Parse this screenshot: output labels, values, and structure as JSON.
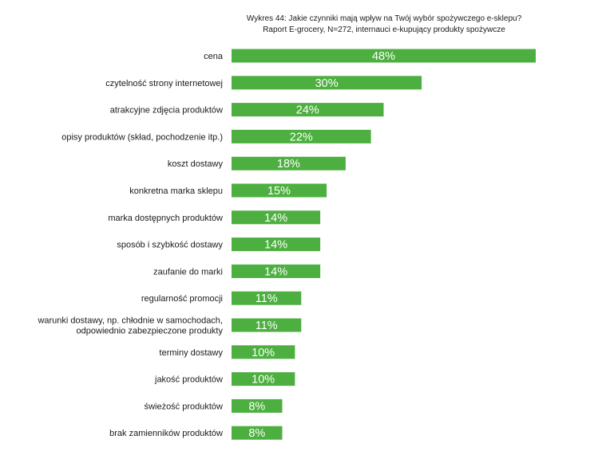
{
  "chart_data": {
    "type": "bar",
    "orientation": "horizontal",
    "title": "Wykres 44: Jakie czynniki mają wpływ na Twój wybór spożywczego e-sklepu?",
    "subtitle": "Raport E-grocery, N=272, internauci e-kupujący produkty spożywcze",
    "bar_color": "#4caf3f",
    "categories": [
      [
        "cena"
      ],
      [
        "czytelność strony internetowej"
      ],
      [
        "atrakcyjne zdjęcia produktów"
      ],
      [
        "opisy produktów (skład, pochodzenie itp.)"
      ],
      [
        "koszt dostawy"
      ],
      [
        "konkretna marka sklepu"
      ],
      [
        "marka dostępnych produktów"
      ],
      [
        "sposób i szybkość dostawy"
      ],
      [
        "zaufanie do marki"
      ],
      [
        "regularność promocji"
      ],
      [
        "warunki dostawy, np. chłodnie w samochodach,",
        "odpowiednio zabezpieczone produkty"
      ],
      [
        "terminy dostawy"
      ],
      [
        "jakość produktów"
      ],
      [
        "świeżość produktów"
      ],
      [
        "brak zamienników produktów"
      ]
    ],
    "values": [
      48,
      30,
      24,
      22,
      18,
      15,
      14,
      14,
      14,
      11,
      11,
      10,
      10,
      8,
      8
    ],
    "value_labels": [
      "48%",
      "30%",
      "24%",
      "22%",
      "18%",
      "15%",
      "14%",
      "14%",
      "14%",
      "11%",
      "11%",
      "10%",
      "10%",
      "8%",
      "8%"
    ],
    "xlim": [
      0,
      48
    ]
  }
}
